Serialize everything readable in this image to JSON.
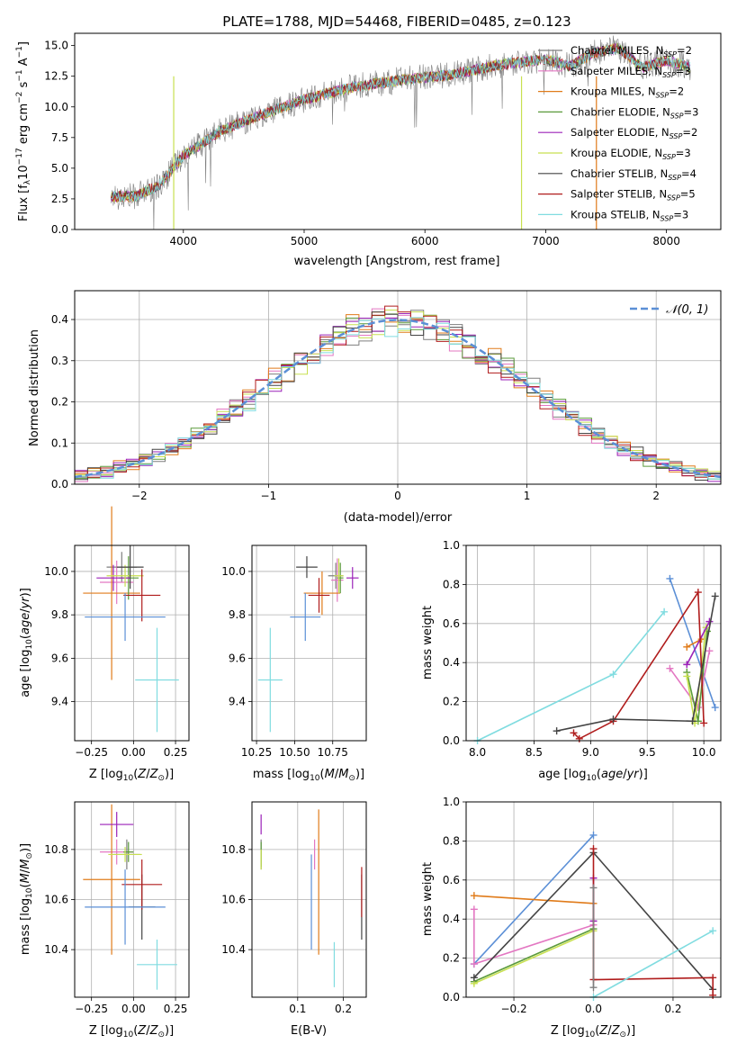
{
  "colors": {
    "chabrier_miles": "#7f7f7f",
    "salpeter_miles": "#e377c2",
    "kroupa_miles": "#e07b1a",
    "chabrier_elodie": "#5a9a3a",
    "salpeter_elodie": "#9b22b8",
    "kroupa_elodie": "#c8e050",
    "chabrier_stelib": "#444444",
    "salpeter_stelib": "#b01c1c",
    "kroupa_stelib": "#80dce0",
    "normal_curve": "#5b8fd6",
    "grid": "#b0b0b0"
  },
  "chart_data": [
    {
      "id": "spectrum",
      "type": "line",
      "title": "PLATE=1788, MJD=54468, FIBERID=0485, z=0.123",
      "xlabel": "wavelength [Angstrom, rest frame]",
      "ylabel": "Flux [fλ10⁻¹⁷ erg cm⁻² s⁻¹ A⁻¹]",
      "xlim": [
        3100,
        8450
      ],
      "ylim": [
        0,
        16
      ],
      "xticks": [
        "4000",
        "5000",
        "6000",
        "7000",
        "8000"
      ],
      "yticks": [
        "0.0",
        "2.5",
        "5.0",
        "7.5",
        "10.0",
        "12.5",
        "15.0"
      ],
      "legend_position": "right",
      "continuum": [
        [
          3400,
          2.7
        ],
        [
          3600,
          2.7
        ],
        [
          3800,
          3.6
        ],
        [
          4000,
          6.0
        ],
        [
          4300,
          8.0
        ],
        [
          4600,
          9.2
        ],
        [
          5000,
          10.6
        ],
        [
          5400,
          11.6
        ],
        [
          5800,
          12.2
        ],
        [
          6200,
          12.6
        ],
        [
          6600,
          13.4
        ],
        [
          7000,
          13.9
        ],
        [
          7200,
          13.3
        ],
        [
          7400,
          14.4
        ],
        [
          7600,
          14.8
        ],
        [
          7800,
          13.2
        ],
        [
          8000,
          13.8
        ],
        [
          8200,
          13.2
        ]
      ],
      "series": [
        {
          "name": "Chabrier MILES, N_SSP=2",
          "label_main": "Chabrier MILES, N",
          "label_sub": "SSP",
          "label_end": "=2",
          "color": "#7f7f7f"
        },
        {
          "name": "Salpeter MILES, N_SSP=3",
          "label_main": "Salpeter MILES, N",
          "label_sub": "SSP",
          "label_end": "=3",
          "color": "#e377c2"
        },
        {
          "name": "Kroupa MILES, N_SSP=2",
          "label_main": "Kroupa MILES, N",
          "label_sub": "SSP",
          "label_end": "=2",
          "color": "#e07b1a"
        },
        {
          "name": "Chabrier ELODIE, N_SSP=3",
          "label_main": "Chabrier ELODIE, N",
          "label_sub": "SSP",
          "label_end": "=3",
          "color": "#5a9a3a"
        },
        {
          "name": "Salpeter ELODIE, N_SSP=2",
          "label_main": "Salpeter ELODIE, N",
          "label_sub": "SSP",
          "label_end": "=2",
          "color": "#9b22b8"
        },
        {
          "name": "Kroupa ELODIE, N_SSP=3",
          "label_main": "Kroupa ELODIE, N",
          "label_sub": "SSP",
          "label_end": "=3",
          "color": "#c8e050"
        },
        {
          "name": "Chabrier STELIB, N_SSP=4",
          "label_main": "Chabrier STELIB, N",
          "label_sub": "SSP",
          "label_end": "=4",
          "color": "#444444"
        },
        {
          "name": "Salpeter STELIB, N_SSP=5",
          "label_main": "Salpeter STELIB, N",
          "label_sub": "SSP",
          "label_end": "=5",
          "color": "#b01c1c"
        },
        {
          "name": "Kroupa STELIB, N_SSP=3",
          "label_main": "Kroupa STELIB, N",
          "label_sub": "SSP",
          "label_end": "=3",
          "color": "#80dce0"
        }
      ]
    },
    {
      "id": "residuals",
      "type": "line",
      "xlabel": "(data-model)/error",
      "ylabel": "Normed distribution",
      "xlim": [
        -2.5,
        2.5
      ],
      "ylim": [
        0,
        0.47
      ],
      "xticks": [
        "−2",
        "−1",
        "0",
        "1",
        "2"
      ],
      "yticks": [
        "0.0",
        "0.1",
        "0.2",
        "0.3",
        "0.4"
      ],
      "legend": "𝒩(0, 1)",
      "legend_position": "top-right",
      "bin_width": 0.1,
      "gaussian": {
        "mean": 0,
        "sigma": 1
      }
    },
    {
      "id": "age_vs_Z",
      "type": "scatter",
      "xlabel": "Z [log10(Z/Z⊙)]",
      "ylabel": "age  [log10(age/yr)]",
      "xlim": [
        -0.35,
        0.33
      ],
      "ylim": [
        9.22,
        10.12
      ],
      "xticks": [
        "−0.25",
        "0.00",
        "0.25"
      ],
      "yticks": [
        "9.4",
        "9.6",
        "9.8",
        "10.0"
      ],
      "points": [
        {
          "x": -0.07,
          "y": 10.02,
          "xerr": 0.09,
          "yerr": 0.07,
          "color": "#7f7f7f"
        },
        {
          "x": -0.1,
          "y": 9.95,
          "xerr": 0.1,
          "yerr": 0.1,
          "color": "#e377c2"
        },
        {
          "x": -0.13,
          "y": 9.9,
          "xerr": 0.17,
          "yerr": 0.4,
          "color": "#e07b1a"
        },
        {
          "x": -0.03,
          "y": 9.97,
          "xerr": 0.06,
          "yerr": 0.1,
          "color": "#5a9a3a"
        },
        {
          "x": -0.12,
          "y": 9.97,
          "xerr": 0.1,
          "yerr": 0.06,
          "color": "#9b22b8"
        },
        {
          "x": -0.05,
          "y": 9.98,
          "xerr": 0.11,
          "yerr": 0.05,
          "color": "#c8e050"
        },
        {
          "x": -0.02,
          "y": 10.02,
          "xerr": 0.08,
          "yerr": 0.1,
          "color": "#444444"
        },
        {
          "x": 0.05,
          "y": 9.89,
          "xerr": 0.11,
          "yerr": 0.12,
          "color": "#b01c1c"
        },
        {
          "x": -0.05,
          "y": 9.79,
          "xerr": 0.24,
          "yerr": 0.11,
          "color": "#5b8fd6"
        },
        {
          "x": 0.14,
          "y": 9.5,
          "xerr": 0.13,
          "yerr": 0.24,
          "color": "#80dce0"
        }
      ]
    },
    {
      "id": "age_vs_mass",
      "type": "scatter",
      "xlabel": "mass [log10(M/M⊙)]",
      "ylabel": "",
      "xlim": [
        10.22,
        10.97
      ],
      "ylim": [
        9.22,
        10.12
      ],
      "xticks": [
        "10.25",
        "10.50",
        "10.75"
      ],
      "yticks": [
        "9.4",
        "9.6",
        "9.8",
        "10.0"
      ],
      "points": [
        {
          "x": 10.77,
          "y": 9.98,
          "xerr": 0.05,
          "yerr": 0.06,
          "color": "#7f7f7f"
        },
        {
          "x": 10.78,
          "y": 9.96,
          "xerr": 0.04,
          "yerr": 0.1,
          "color": "#e377c2"
        },
        {
          "x": 10.68,
          "y": 9.9,
          "xerr": 0.12,
          "yerr": 0.1,
          "color": "#e07b1a"
        },
        {
          "x": 10.8,
          "y": 9.97,
          "xerr": 0.02,
          "yerr": 0.07,
          "color": "#5a9a3a"
        },
        {
          "x": 10.88,
          "y": 9.97,
          "xerr": 0.04,
          "yerr": 0.05,
          "color": "#9b22b8"
        },
        {
          "x": 10.79,
          "y": 9.98,
          "xerr": 0.03,
          "yerr": 0.08,
          "color": "#c8e050"
        },
        {
          "x": 10.58,
          "y": 10.02,
          "xerr": 0.07,
          "yerr": 0.05,
          "color": "#444444"
        },
        {
          "x": 10.66,
          "y": 9.89,
          "xerr": 0.07,
          "yerr": 0.08,
          "color": "#b01c1c"
        },
        {
          "x": 10.57,
          "y": 9.79,
          "xerr": 0.1,
          "yerr": 0.11,
          "color": "#5b8fd6"
        },
        {
          "x": 10.34,
          "y": 9.5,
          "xerr": 0.08,
          "yerr": 0.24,
          "color": "#80dce0"
        }
      ]
    },
    {
      "id": "weight_vs_age",
      "type": "line",
      "xlabel": "age  [log10(age/yr)]",
      "ylabel": "mass weight",
      "xlim": [
        7.9,
        10.15
      ],
      "ylim": [
        0,
        1
      ],
      "xticks": [
        "8.0",
        "8.5",
        "9.0",
        "9.5",
        "10.0"
      ],
      "yticks": [
        "0.0",
        "0.2",
        "0.4",
        "0.6",
        "0.8",
        "1.0"
      ],
      "series": [
        {
          "color": "#5b8fd6",
          "x": [
            9.7,
            10.1
          ],
          "y": [
            0.83,
            0.17
          ]
        },
        {
          "color": "#80dce0",
          "x": [
            8.0,
            9.2,
            9.65
          ],
          "y": [
            0.0,
            0.34,
            0.66
          ]
        },
        {
          "color": "#e377c2",
          "x": [
            9.7,
            9.95,
            10.05
          ],
          "y": [
            0.37,
            0.17,
            0.46
          ]
        },
        {
          "color": "#e07b1a",
          "x": [
            9.85,
            9.98
          ],
          "y": [
            0.48,
            0.52
          ]
        },
        {
          "color": "#5a9a3a",
          "x": [
            9.85,
            9.95,
            10.03
          ],
          "y": [
            0.35,
            0.1,
            0.56
          ]
        },
        {
          "color": "#c8e050",
          "x": [
            9.85,
            9.92,
            10.02
          ],
          "y": [
            0.33,
            0.09,
            0.58
          ]
        },
        {
          "color": "#9b22b8",
          "x": [
            9.85,
            10.05
          ],
          "y": [
            0.39,
            0.61
          ]
        },
        {
          "color": "#b01c1c",
          "x": [
            8.85,
            8.9,
            9.2,
            9.95,
            10.0
          ],
          "y": [
            0.04,
            0.01,
            0.1,
            0.76,
            0.09
          ]
        },
        {
          "color": "#444444",
          "x": [
            8.7,
            9.2,
            9.9,
            10.1
          ],
          "y": [
            0.05,
            0.11,
            0.1,
            0.74
          ]
        }
      ]
    },
    {
      "id": "mass_vs_Z",
      "type": "scatter",
      "xlabel": "Z [log10(Z/Z⊙)]",
      "ylabel": "mass [log10(M/M⊙)]",
      "xlim": [
        -0.35,
        0.33
      ],
      "ylim": [
        10.21,
        10.99
      ],
      "xticks": [
        "−0.25",
        "0.00",
        "0.25"
      ],
      "yticks": [
        "10.4",
        "10.6",
        "10.8"
      ],
      "points": [
        {
          "x": -0.04,
          "y": 10.78,
          "xerr": 0.08,
          "yerr": 0.06,
          "color": "#7f7f7f"
        },
        {
          "x": -0.1,
          "y": 10.79,
          "xerr": 0.1,
          "yerr": 0.05,
          "color": "#e377c2"
        },
        {
          "x": -0.13,
          "y": 10.68,
          "xerr": 0.17,
          "yerr": 0.3,
          "color": "#e07b1a"
        },
        {
          "x": -0.03,
          "y": 10.79,
          "xerr": 0.03,
          "yerr": 0.04,
          "color": "#5a9a3a"
        },
        {
          "x": -0.1,
          "y": 10.9,
          "xerr": 0.1,
          "yerr": 0.05,
          "color": "#9b22b8"
        },
        {
          "x": -0.05,
          "y": 10.78,
          "xerr": 0.1,
          "yerr": 0.03,
          "color": "#c8e050"
        },
        {
          "x": 0.05,
          "y": 10.57,
          "xerr": 0.08,
          "yerr": 0.13,
          "color": "#444444"
        },
        {
          "x": 0.05,
          "y": 10.66,
          "xerr": 0.12,
          "yerr": 0.1,
          "color": "#b01c1c"
        },
        {
          "x": -0.05,
          "y": 10.57,
          "xerr": 0.24,
          "yerr": 0.15,
          "color": "#5b8fd6"
        },
        {
          "x": 0.14,
          "y": 10.34,
          "xerr": 0.12,
          "yerr": 0.1,
          "color": "#80dce0"
        }
      ]
    },
    {
      "id": "mass_vs_ebv",
      "type": "scatter",
      "xlabel": "E(B-V)",
      "ylabel": "",
      "xlim": [
        0.0,
        0.25
      ],
      "ylim": [
        10.21,
        10.99
      ],
      "xticks": [
        "0.1",
        "0.2"
      ],
      "yticks": [
        "10.4",
        "10.6",
        "10.8"
      ],
      "points": [
        {
          "x": 0.02,
          "y": 10.78,
          "yerr": 0.06,
          "color": "#7f7f7f"
        },
        {
          "x": 0.137,
          "y": 10.78,
          "yerr": 0.06,
          "color": "#e377c2"
        },
        {
          "x": 0.146,
          "y": 10.67,
          "yerr": 0.29,
          "color": "#e07b1a"
        },
        {
          "x": 0.02,
          "y": 10.78,
          "yerr": 0.05,
          "color": "#5a9a3a"
        },
        {
          "x": 0.02,
          "y": 10.9,
          "yerr": 0.04,
          "color": "#9b22b8"
        },
        {
          "x": 0.02,
          "y": 10.76,
          "yerr": 0.04,
          "color": "#c8e050"
        },
        {
          "x": 0.24,
          "y": 10.57,
          "yerr": 0.13,
          "color": "#444444"
        },
        {
          "x": 0.24,
          "y": 10.63,
          "yerr": 0.1,
          "color": "#b01c1c"
        },
        {
          "x": 0.13,
          "y": 10.59,
          "yerr": 0.19,
          "color": "#5b8fd6"
        },
        {
          "x": 0.18,
          "y": 10.34,
          "yerr": 0.09,
          "color": "#80dce0"
        }
      ]
    },
    {
      "id": "weight_vs_Z",
      "type": "line",
      "xlabel": "Z [log10(Z/Z⊙)]",
      "ylabel": "mass weight",
      "xlim": [
        -0.32,
        0.32
      ],
      "ylim": [
        0,
        1
      ],
      "xticks": [
        "−0.2",
        "0.0",
        "0.2"
      ],
      "yticks": [
        "0.0",
        "0.2",
        "0.4",
        "0.6",
        "0.8",
        "1.0"
      ],
      "series": [
        {
          "color": "#5b8fd6",
          "x": [
            -0.3,
            0.0
          ],
          "y": [
            0.17,
            0.83
          ]
        },
        {
          "color": "#e07b1a",
          "x": [
            -0.3,
            0.0
          ],
          "y": [
            0.52,
            0.48
          ]
        },
        {
          "color": "#e377c2",
          "x": [
            -0.3,
            -0.3,
            0.0
          ],
          "y": [
            0.45,
            0.17,
            0.37
          ]
        },
        {
          "color": "#5a9a3a",
          "x": [
            -0.3,
            0.0
          ],
          "y": [
            0.08,
            0.35
          ]
        },
        {
          "color": "#c8e050",
          "x": [
            -0.3,
            0.0
          ],
          "y": [
            0.07,
            0.34
          ]
        },
        {
          "color": "#9b22b8",
          "x": [
            0.0,
            0.0
          ],
          "y": [
            0.61,
            0.39
          ]
        },
        {
          "color": "#444444",
          "x": [
            -0.3,
            0.0,
            0.3
          ],
          "y": [
            0.1,
            0.74,
            0.04
          ]
        },
        {
          "color": "#b01c1c",
          "x": [
            0.0,
            0.0,
            0.3,
            0.3
          ],
          "y": [
            0.76,
            0.09,
            0.1,
            0.01
          ]
        },
        {
          "color": "#80dce0",
          "x": [
            0.0,
            0.3
          ],
          "y": [
            0.0,
            0.34
          ]
        },
        {
          "color": "#7f7f7f",
          "x": [
            0.0,
            0.0
          ],
          "y": [
            0.05,
            0.56
          ]
        }
      ]
    }
  ]
}
